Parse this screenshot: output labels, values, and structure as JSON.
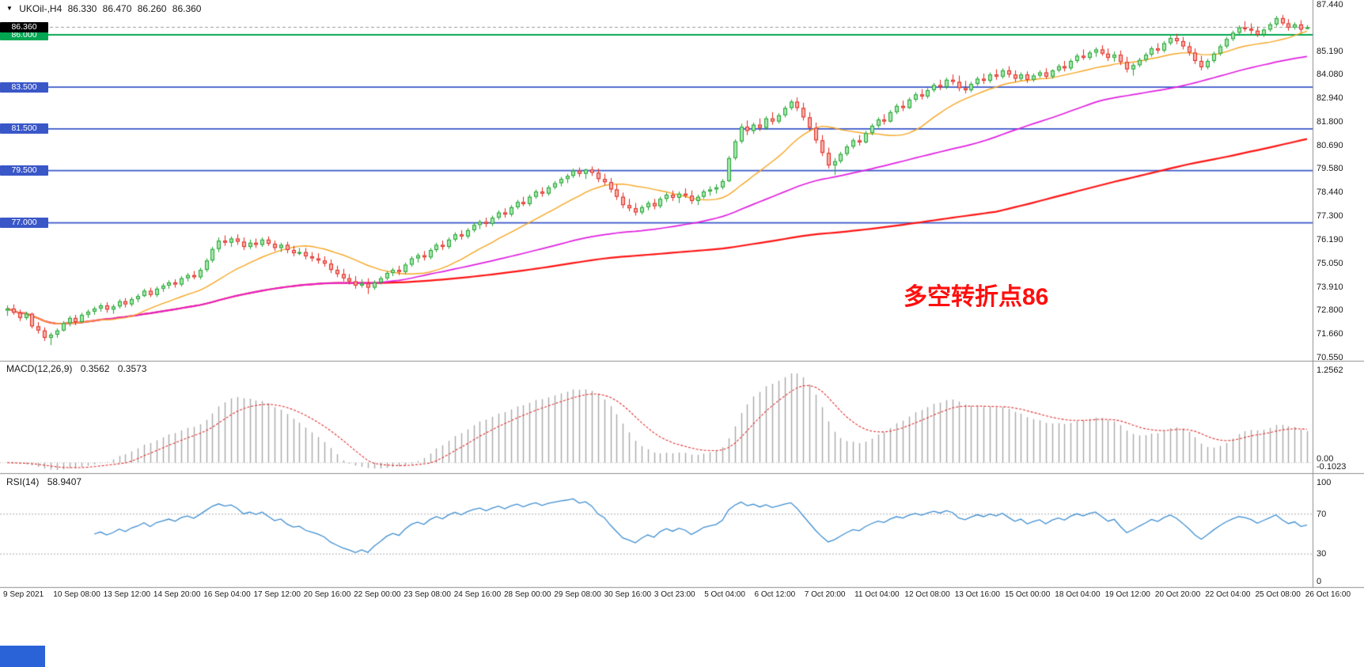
{
  "window": {
    "title_symbol": "UKOil-,H4",
    "quote": {
      "open": "86.330",
      "high": "86.470",
      "low": "86.260",
      "close": "86.360"
    }
  },
  "annotation": {
    "text": "多空转折点86",
    "color": "#ff0e0e"
  },
  "indicators": {
    "macd": {
      "label": "MACD(12,26,9)",
      "value1": "0.3562",
      "value2": "0.3573",
      "axis_labels": [
        "1.2562",
        "0.00",
        "-0.1023"
      ]
    },
    "rsi": {
      "label": "RSI(14)",
      "value": "58.9407",
      "axis_labels": [
        "100",
        "70",
        "30",
        "0"
      ],
      "levels": [
        70,
        30
      ]
    }
  },
  "colors": {
    "up": "#1fa22e",
    "up_fill": "#a6e7ae",
    "down": "#e2241b",
    "down_fill": "#f6b1aa",
    "ma_fast": "#f5a623",
    "ma_mid": "#e020e0",
    "ma_slow": "#ff1414",
    "line_green": "#00a651",
    "line_blue": "#3a57c8",
    "macd_histogram": "#a8a8a8",
    "macd_signal": "#e03030",
    "rsi_line": "#3f8ed0",
    "level_dashed": "#aaaaaa",
    "separator": "#8c8c8c",
    "badge_current_bg": "#000000",
    "taskbar_blue": "#2a62d8"
  },
  "chart_data": {
    "type": "candlestick",
    "symbol": "UKOil-",
    "timeframe": "H4",
    "current_price": 86.36,
    "y_axis": {
      "min": 70.55,
      "max": 87.44,
      "tick_labels": [
        "87.440",
        "85.190",
        "84.080",
        "82.940",
        "81.800",
        "80.690",
        "79.580",
        "78.440",
        "77.300",
        "76.190",
        "75.050",
        "73.910",
        "72.800",
        "71.660",
        "70.550"
      ]
    },
    "horizontal_lines": [
      {
        "price": 86.0,
        "label": "86.000",
        "color": "#00a651"
      },
      {
        "price": 83.5,
        "label": "83.500",
        "color": "#3a57c8"
      },
      {
        "price": 81.5,
        "label": "81.500",
        "color": "#3a57c8"
      },
      {
        "price": 79.5,
        "label": "79.500",
        "color": "#3a57c8"
      },
      {
        "price": 77.0,
        "label": "77.000",
        "color": "#3a57c8"
      }
    ],
    "current_price_badge": {
      "label": "86.360",
      "price": 86.36
    },
    "time_labels": [
      "9 Sep 2021",
      "10 Sep 08:00",
      "13 Sep 12:00",
      "14 Sep 20:00",
      "16 Sep 04:00",
      "17 Sep 12:00",
      "20 Sep 16:00",
      "22 Sep 00:00",
      "23 Sep 08:00",
      "24 Sep 16:00",
      "28 Sep 00:00",
      "29 Sep 08:00",
      "30 Sep 16:00",
      "3 Oct 23:00",
      "5 Oct 04:00",
      "6 Oct 12:00",
      "7 Oct 20:00",
      "11 Oct 04:00",
      "12 Oct 08:00",
      "13 Oct 16:00",
      "15 Oct 00:00",
      "18 Oct 04:00",
      "19 Oct 12:00",
      "20 Oct 20:00",
      "22 Oct 04:00",
      "25 Oct 08:00",
      "26 Oct 16:00"
    ],
    "candles": [
      [
        72.8,
        73.05,
        72.55,
        72.9
      ],
      [
        72.9,
        73.1,
        72.6,
        72.7
      ],
      [
        72.7,
        72.85,
        72.3,
        72.45
      ],
      [
        72.45,
        72.75,
        72.35,
        72.65
      ],
      [
        72.65,
        72.7,
        71.95,
        72.05
      ],
      [
        72.05,
        72.25,
        71.7,
        71.85
      ],
      [
        71.85,
        72.0,
        71.35,
        71.5
      ],
      [
        71.5,
        71.75,
        71.15,
        71.65
      ],
      [
        71.65,
        71.95,
        71.5,
        71.85
      ],
      [
        71.85,
        72.3,
        71.8,
        72.2
      ],
      [
        72.2,
        72.55,
        72.05,
        72.45
      ],
      [
        72.45,
        72.6,
        72.1,
        72.25
      ],
      [
        72.25,
        72.7,
        72.2,
        72.6
      ],
      [
        72.6,
        72.85,
        72.45,
        72.75
      ],
      [
        72.75,
        73.0,
        72.6,
        72.9
      ],
      [
        72.9,
        73.15,
        72.75,
        73.05
      ],
      [
        73.05,
        73.2,
        72.7,
        72.85
      ],
      [
        72.85,
        73.1,
        72.65,
        73.0
      ],
      [
        73.0,
        73.35,
        72.9,
        73.25
      ],
      [
        73.25,
        73.4,
        72.95,
        73.1
      ],
      [
        73.1,
        73.45,
        73.0,
        73.35
      ],
      [
        73.35,
        73.6,
        73.2,
        73.5
      ],
      [
        73.5,
        73.85,
        73.45,
        73.75
      ],
      [
        73.75,
        73.9,
        73.45,
        73.55
      ],
      [
        73.55,
        73.95,
        73.45,
        73.85
      ],
      [
        73.85,
        74.1,
        73.7,
        74.0
      ],
      [
        74.0,
        74.25,
        73.85,
        74.15
      ],
      [
        74.15,
        74.3,
        73.9,
        74.05
      ],
      [
        74.05,
        74.45,
        73.95,
        74.35
      ],
      [
        74.35,
        74.6,
        74.2,
        74.5
      ],
      [
        74.5,
        74.7,
        74.3,
        74.4
      ],
      [
        74.4,
        74.85,
        74.3,
        74.75
      ],
      [
        74.75,
        75.3,
        74.65,
        75.2
      ],
      [
        75.2,
        75.85,
        75.1,
        75.75
      ],
      [
        75.75,
        76.3,
        75.6,
        76.15
      ],
      [
        76.15,
        76.4,
        75.9,
        76.05
      ],
      [
        76.05,
        76.35,
        75.85,
        76.25
      ],
      [
        76.25,
        76.45,
        75.95,
        76.1
      ],
      [
        76.1,
        76.3,
        75.7,
        75.85
      ],
      [
        75.85,
        76.2,
        75.75,
        76.05
      ],
      [
        76.05,
        76.25,
        75.8,
        75.95
      ],
      [
        75.95,
        76.3,
        75.85,
        76.2
      ],
      [
        76.2,
        76.35,
        75.9,
        76.0
      ],
      [
        76.0,
        76.15,
        75.65,
        75.8
      ],
      [
        75.8,
        76.05,
        75.6,
        75.95
      ],
      [
        75.95,
        76.1,
        75.55,
        75.7
      ],
      [
        75.7,
        75.9,
        75.4,
        75.55
      ],
      [
        75.55,
        75.8,
        75.45,
        75.6
      ],
      [
        75.6,
        75.8,
        75.25,
        75.4
      ],
      [
        75.4,
        75.6,
        75.15,
        75.3
      ],
      [
        75.3,
        75.55,
        75.05,
        75.2
      ],
      [
        75.2,
        75.4,
        74.9,
        75.05
      ],
      [
        75.05,
        75.25,
        74.6,
        74.75
      ],
      [
        74.75,
        74.95,
        74.4,
        74.55
      ],
      [
        74.55,
        74.8,
        74.2,
        74.35
      ],
      [
        74.35,
        74.55,
        74.05,
        74.2
      ],
      [
        74.2,
        74.45,
        73.85,
        74.0
      ],
      [
        74.0,
        74.3,
        73.9,
        74.1
      ],
      [
        74.1,
        74.35,
        73.6,
        73.9
      ],
      [
        73.9,
        74.25,
        73.8,
        74.15
      ],
      [
        74.15,
        74.45,
        74.05,
        74.35
      ],
      [
        74.35,
        74.7,
        74.25,
        74.6
      ],
      [
        74.6,
        74.85,
        74.45,
        74.75
      ],
      [
        74.75,
        74.95,
        74.5,
        74.65
      ],
      [
        74.65,
        75.1,
        74.55,
        75.0
      ],
      [
        75.0,
        75.4,
        74.9,
        75.3
      ],
      [
        75.3,
        75.55,
        75.1,
        75.45
      ],
      [
        75.45,
        75.65,
        75.2,
        75.35
      ],
      [
        75.35,
        75.8,
        75.25,
        75.7
      ],
      [
        75.7,
        76.05,
        75.6,
        75.95
      ],
      [
        75.95,
        76.15,
        75.7,
        75.85
      ],
      [
        75.85,
        76.3,
        75.75,
        76.2
      ],
      [
        76.2,
        76.55,
        76.1,
        76.45
      ],
      [
        76.45,
        76.65,
        76.2,
        76.35
      ],
      [
        76.35,
        76.75,
        76.25,
        76.65
      ],
      [
        76.65,
        77.0,
        76.55,
        76.9
      ],
      [
        76.9,
        77.15,
        76.7,
        77.05
      ],
      [
        77.05,
        77.25,
        76.8,
        76.95
      ],
      [
        76.95,
        77.35,
        76.85,
        77.25
      ],
      [
        77.25,
        77.6,
        77.15,
        77.5
      ],
      [
        77.5,
        77.7,
        77.25,
        77.4
      ],
      [
        77.4,
        77.85,
        77.3,
        77.75
      ],
      [
        77.75,
        78.1,
        77.65,
        78.0
      ],
      [
        78.0,
        78.25,
        77.8,
        77.9
      ],
      [
        77.9,
        78.35,
        77.8,
        78.25
      ],
      [
        78.25,
        78.6,
        78.15,
        78.5
      ],
      [
        78.5,
        78.7,
        78.25,
        78.4
      ],
      [
        78.4,
        78.8,
        78.3,
        78.7
      ],
      [
        78.7,
        79.0,
        78.6,
        78.9
      ],
      [
        78.9,
        79.2,
        78.75,
        79.1
      ],
      [
        79.1,
        79.35,
        78.9,
        79.25
      ],
      [
        79.25,
        79.6,
        79.15,
        79.5
      ],
      [
        79.5,
        79.65,
        79.2,
        79.35
      ],
      [
        79.35,
        79.6,
        79.1,
        79.55
      ],
      [
        79.55,
        79.7,
        79.25,
        79.4
      ],
      [
        79.4,
        79.6,
        78.95,
        79.1
      ],
      [
        79.1,
        79.35,
        78.8,
        78.95
      ],
      [
        78.95,
        79.15,
        78.45,
        78.6
      ],
      [
        78.6,
        78.85,
        78.1,
        78.25
      ],
      [
        78.25,
        78.45,
        77.7,
        77.85
      ],
      [
        77.85,
        78.15,
        77.55,
        77.7
      ],
      [
        77.7,
        77.95,
        77.35,
        77.5
      ],
      [
        77.5,
        77.85,
        77.4,
        77.75
      ],
      [
        77.75,
        78.05,
        77.6,
        77.95
      ],
      [
        77.95,
        78.15,
        77.65,
        77.8
      ],
      [
        77.8,
        78.25,
        77.7,
        78.15
      ],
      [
        78.15,
        78.45,
        78.0,
        78.35
      ],
      [
        78.35,
        78.55,
        78.05,
        78.2
      ],
      [
        78.2,
        78.5,
        77.95,
        78.4
      ],
      [
        78.4,
        78.65,
        78.2,
        78.3
      ],
      [
        78.3,
        78.55,
        77.9,
        78.05
      ],
      [
        78.05,
        78.35,
        77.85,
        78.25
      ],
      [
        78.25,
        78.6,
        78.15,
        78.5
      ],
      [
        78.5,
        78.75,
        78.3,
        78.6
      ],
      [
        78.6,
        78.85,
        78.4,
        78.7
      ],
      [
        78.7,
        79.1,
        78.6,
        79.0
      ],
      [
        79.0,
        80.2,
        78.95,
        80.1
      ],
      [
        80.1,
        81.0,
        80.0,
        80.9
      ],
      [
        80.9,
        81.75,
        80.8,
        81.6
      ],
      [
        81.6,
        81.9,
        81.2,
        81.4
      ],
      [
        81.4,
        81.8,
        81.25,
        81.7
      ],
      [
        81.7,
        82.0,
        81.4,
        81.55
      ],
      [
        81.55,
        82.1,
        81.45,
        82.0
      ],
      [
        82.0,
        82.3,
        81.7,
        81.85
      ],
      [
        81.85,
        82.25,
        81.75,
        82.15
      ],
      [
        82.15,
        82.6,
        82.05,
        82.5
      ],
      [
        82.5,
        82.9,
        82.4,
        82.8
      ],
      [
        82.8,
        83.0,
        82.35,
        82.5
      ],
      [
        82.5,
        82.75,
        81.9,
        82.05
      ],
      [
        82.05,
        82.3,
        81.4,
        81.55
      ],
      [
        81.55,
        81.8,
        80.8,
        80.95
      ],
      [
        80.95,
        81.2,
        80.2,
        80.35
      ],
      [
        80.35,
        80.6,
        79.6,
        79.75
      ],
      [
        79.75,
        80.1,
        79.3,
        79.95
      ],
      [
        79.95,
        80.4,
        79.85,
        80.3
      ],
      [
        80.3,
        80.75,
        80.2,
        80.65
      ],
      [
        80.65,
        81.05,
        80.55,
        80.95
      ],
      [
        80.95,
        81.2,
        80.7,
        80.85
      ],
      [
        80.85,
        81.4,
        80.8,
        81.3
      ],
      [
        81.3,
        81.75,
        81.2,
        81.65
      ],
      [
        81.65,
        82.05,
        81.55,
        81.95
      ],
      [
        81.95,
        82.2,
        81.7,
        81.85
      ],
      [
        81.85,
        82.4,
        81.8,
        82.3
      ],
      [
        82.3,
        82.7,
        82.2,
        82.6
      ],
      [
        82.6,
        82.85,
        82.35,
        82.5
      ],
      [
        82.5,
        83.0,
        82.45,
        82.9
      ],
      [
        82.9,
        83.25,
        82.8,
        83.15
      ],
      [
        83.15,
        83.4,
        82.9,
        83.05
      ],
      [
        83.05,
        83.45,
        82.95,
        83.35
      ],
      [
        83.35,
        83.7,
        83.25,
        83.6
      ],
      [
        83.6,
        83.85,
        83.35,
        83.5
      ],
      [
        83.5,
        83.95,
        83.4,
        83.85
      ],
      [
        83.85,
        84.1,
        83.6,
        83.75
      ],
      [
        83.75,
        84.05,
        83.3,
        83.45
      ],
      [
        83.45,
        83.8,
        83.2,
        83.35
      ],
      [
        83.35,
        83.75,
        83.25,
        83.65
      ],
      [
        83.65,
        84.0,
        83.55,
        83.9
      ],
      [
        83.9,
        84.15,
        83.65,
        83.8
      ],
      [
        83.8,
        84.2,
        83.7,
        84.1
      ],
      [
        84.1,
        84.35,
        83.85,
        84.0
      ],
      [
        84.0,
        84.4,
        83.9,
        84.3
      ],
      [
        84.3,
        84.5,
        83.95,
        84.1
      ],
      [
        84.1,
        84.3,
        83.75,
        83.9
      ],
      [
        83.9,
        84.2,
        83.8,
        84.1
      ],
      [
        84.1,
        84.25,
        83.7,
        83.85
      ],
      [
        83.85,
        84.15,
        83.75,
        84.05
      ],
      [
        84.05,
        84.3,
        83.95,
        84.2
      ],
      [
        84.2,
        84.4,
        83.9,
        84.0
      ],
      [
        84.0,
        84.35,
        83.9,
        84.3
      ],
      [
        84.3,
        84.6,
        84.2,
        84.5
      ],
      [
        84.5,
        84.75,
        84.25,
        84.4
      ],
      [
        84.4,
        84.85,
        84.3,
        84.75
      ],
      [
        84.75,
        85.1,
        84.65,
        85.0
      ],
      [
        85.0,
        85.3,
        84.8,
        84.9
      ],
      [
        84.9,
        85.25,
        84.8,
        85.15
      ],
      [
        85.15,
        85.4,
        84.95,
        85.3
      ],
      [
        85.3,
        85.5,
        85.0,
        85.1
      ],
      [
        85.1,
        85.35,
        84.75,
        84.9
      ],
      [
        84.9,
        85.2,
        84.7,
        85.05
      ],
      [
        85.05,
        85.25,
        84.55,
        84.7
      ],
      [
        84.7,
        84.95,
        84.2,
        84.35
      ],
      [
        84.35,
        84.65,
        84.05,
        84.55
      ],
      [
        84.55,
        84.9,
        84.45,
        84.8
      ],
      [
        84.8,
        85.15,
        84.7,
        85.05
      ],
      [
        85.05,
        85.45,
        84.95,
        85.35
      ],
      [
        85.35,
        85.6,
        85.1,
        85.25
      ],
      [
        85.25,
        85.7,
        85.15,
        85.6
      ],
      [
        85.6,
        85.95,
        85.5,
        85.85
      ],
      [
        85.85,
        86.05,
        85.55,
        85.7
      ],
      [
        85.7,
        85.9,
        85.3,
        85.45
      ],
      [
        85.45,
        85.65,
        85.0,
        85.15
      ],
      [
        85.15,
        85.35,
        84.6,
        84.75
      ],
      [
        84.75,
        85.0,
        84.3,
        84.45
      ],
      [
        84.45,
        84.85,
        84.35,
        84.75
      ],
      [
        84.75,
        85.2,
        84.65,
        85.1
      ],
      [
        85.1,
        85.55,
        85.0,
        85.45
      ],
      [
        85.45,
        85.9,
        85.35,
        85.8
      ],
      [
        85.8,
        86.2,
        85.7,
        86.1
      ],
      [
        86.1,
        86.45,
        86.0,
        86.35
      ],
      [
        86.35,
        86.65,
        86.15,
        86.3
      ],
      [
        86.3,
        86.55,
        86.05,
        86.2
      ],
      [
        86.2,
        86.4,
        85.9,
        86.0
      ],
      [
        86.0,
        86.3,
        85.9,
        86.25
      ],
      [
        86.25,
        86.6,
        86.15,
        86.5
      ],
      [
        86.5,
        86.9,
        86.4,
        86.8
      ],
      [
        86.8,
        86.95,
        86.45,
        86.55
      ],
      [
        86.55,
        86.75,
        86.2,
        86.35
      ],
      [
        86.35,
        86.6,
        86.25,
        86.5
      ],
      [
        86.5,
        86.7,
        86.1,
        86.25
      ],
      [
        86.33,
        86.47,
        86.26,
        86.36
      ]
    ]
  }
}
